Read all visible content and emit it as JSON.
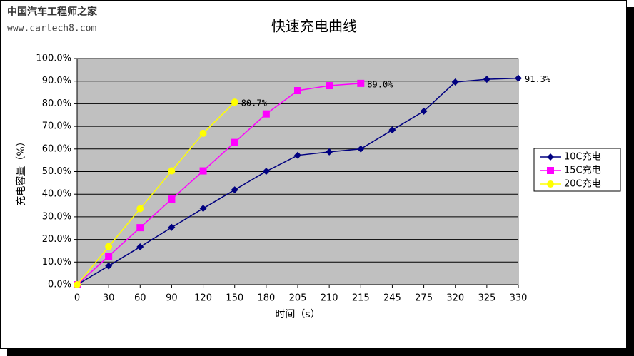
{
  "watermark": {
    "title": "中国汽车工程师之家",
    "url": "www.cartech8.com"
  },
  "chart_data": {
    "type": "line",
    "title": "快速充电曲线",
    "x_label": "时间（s）",
    "y_label": "充电容量（%）",
    "categories": [
      "0",
      "30",
      "60",
      "90",
      "120",
      "150",
      "180",
      "205",
      "210",
      "215",
      "245",
      "275",
      "320",
      "325",
      "330"
    ],
    "series": [
      {
        "name": "10C充电",
        "color": "#000080",
        "marker": "diamond",
        "values": [
          0,
          8.3,
          16.7,
          25.3,
          33.7,
          41.9,
          50.1,
          57.2,
          58.7,
          60.0,
          68.4,
          76.7,
          89.6,
          90.8,
          91.3
        ],
        "value_labels": [
          null,
          null,
          null,
          null,
          null,
          null,
          null,
          null,
          null,
          null,
          null,
          null,
          null,
          null,
          "91.3%"
        ]
      },
      {
        "name": "15C充电",
        "color": "#ff00ff",
        "marker": "square",
        "values": [
          0,
          12.6,
          25.2,
          37.8,
          50.3,
          62.9,
          75.5,
          85.8,
          88.0,
          89.0,
          null,
          null,
          null,
          null,
          null
        ],
        "value_labels": [
          null,
          null,
          null,
          null,
          null,
          null,
          null,
          null,
          null,
          "89.0%",
          null,
          null,
          null,
          null,
          null
        ]
      },
      {
        "name": "20C充电",
        "color": "#ffff00",
        "marker": "circle",
        "values": [
          0,
          16.8,
          33.6,
          50.3,
          66.9,
          80.7,
          null,
          null,
          null,
          null,
          null,
          null,
          null,
          null,
          null
        ],
        "value_labels": [
          null,
          null,
          null,
          null,
          null,
          "80.7%",
          null,
          null,
          null,
          null,
          null,
          null,
          null,
          null,
          null
        ]
      }
    ],
    "ylim": [
      0,
      100
    ],
    "yticks": [
      {
        "value": 0,
        "label": "0.0%"
      },
      {
        "value": 10,
        "label": "10.0%"
      },
      {
        "value": 20,
        "label": "20.0%"
      },
      {
        "value": 30,
        "label": "30.0%"
      },
      {
        "value": 40,
        "label": "40.0%"
      },
      {
        "value": 50,
        "label": "50.0%"
      },
      {
        "value": 60,
        "label": "60.0%"
      },
      {
        "value": 70,
        "label": "70.0%"
      },
      {
        "value": 80,
        "label": "80.0%"
      },
      {
        "value": 90,
        "label": "90.0%"
      },
      {
        "value": 100,
        "label": "100.0%"
      }
    ],
    "grid": true,
    "plot_background": "#c0c0c0",
    "legend": "right"
  }
}
